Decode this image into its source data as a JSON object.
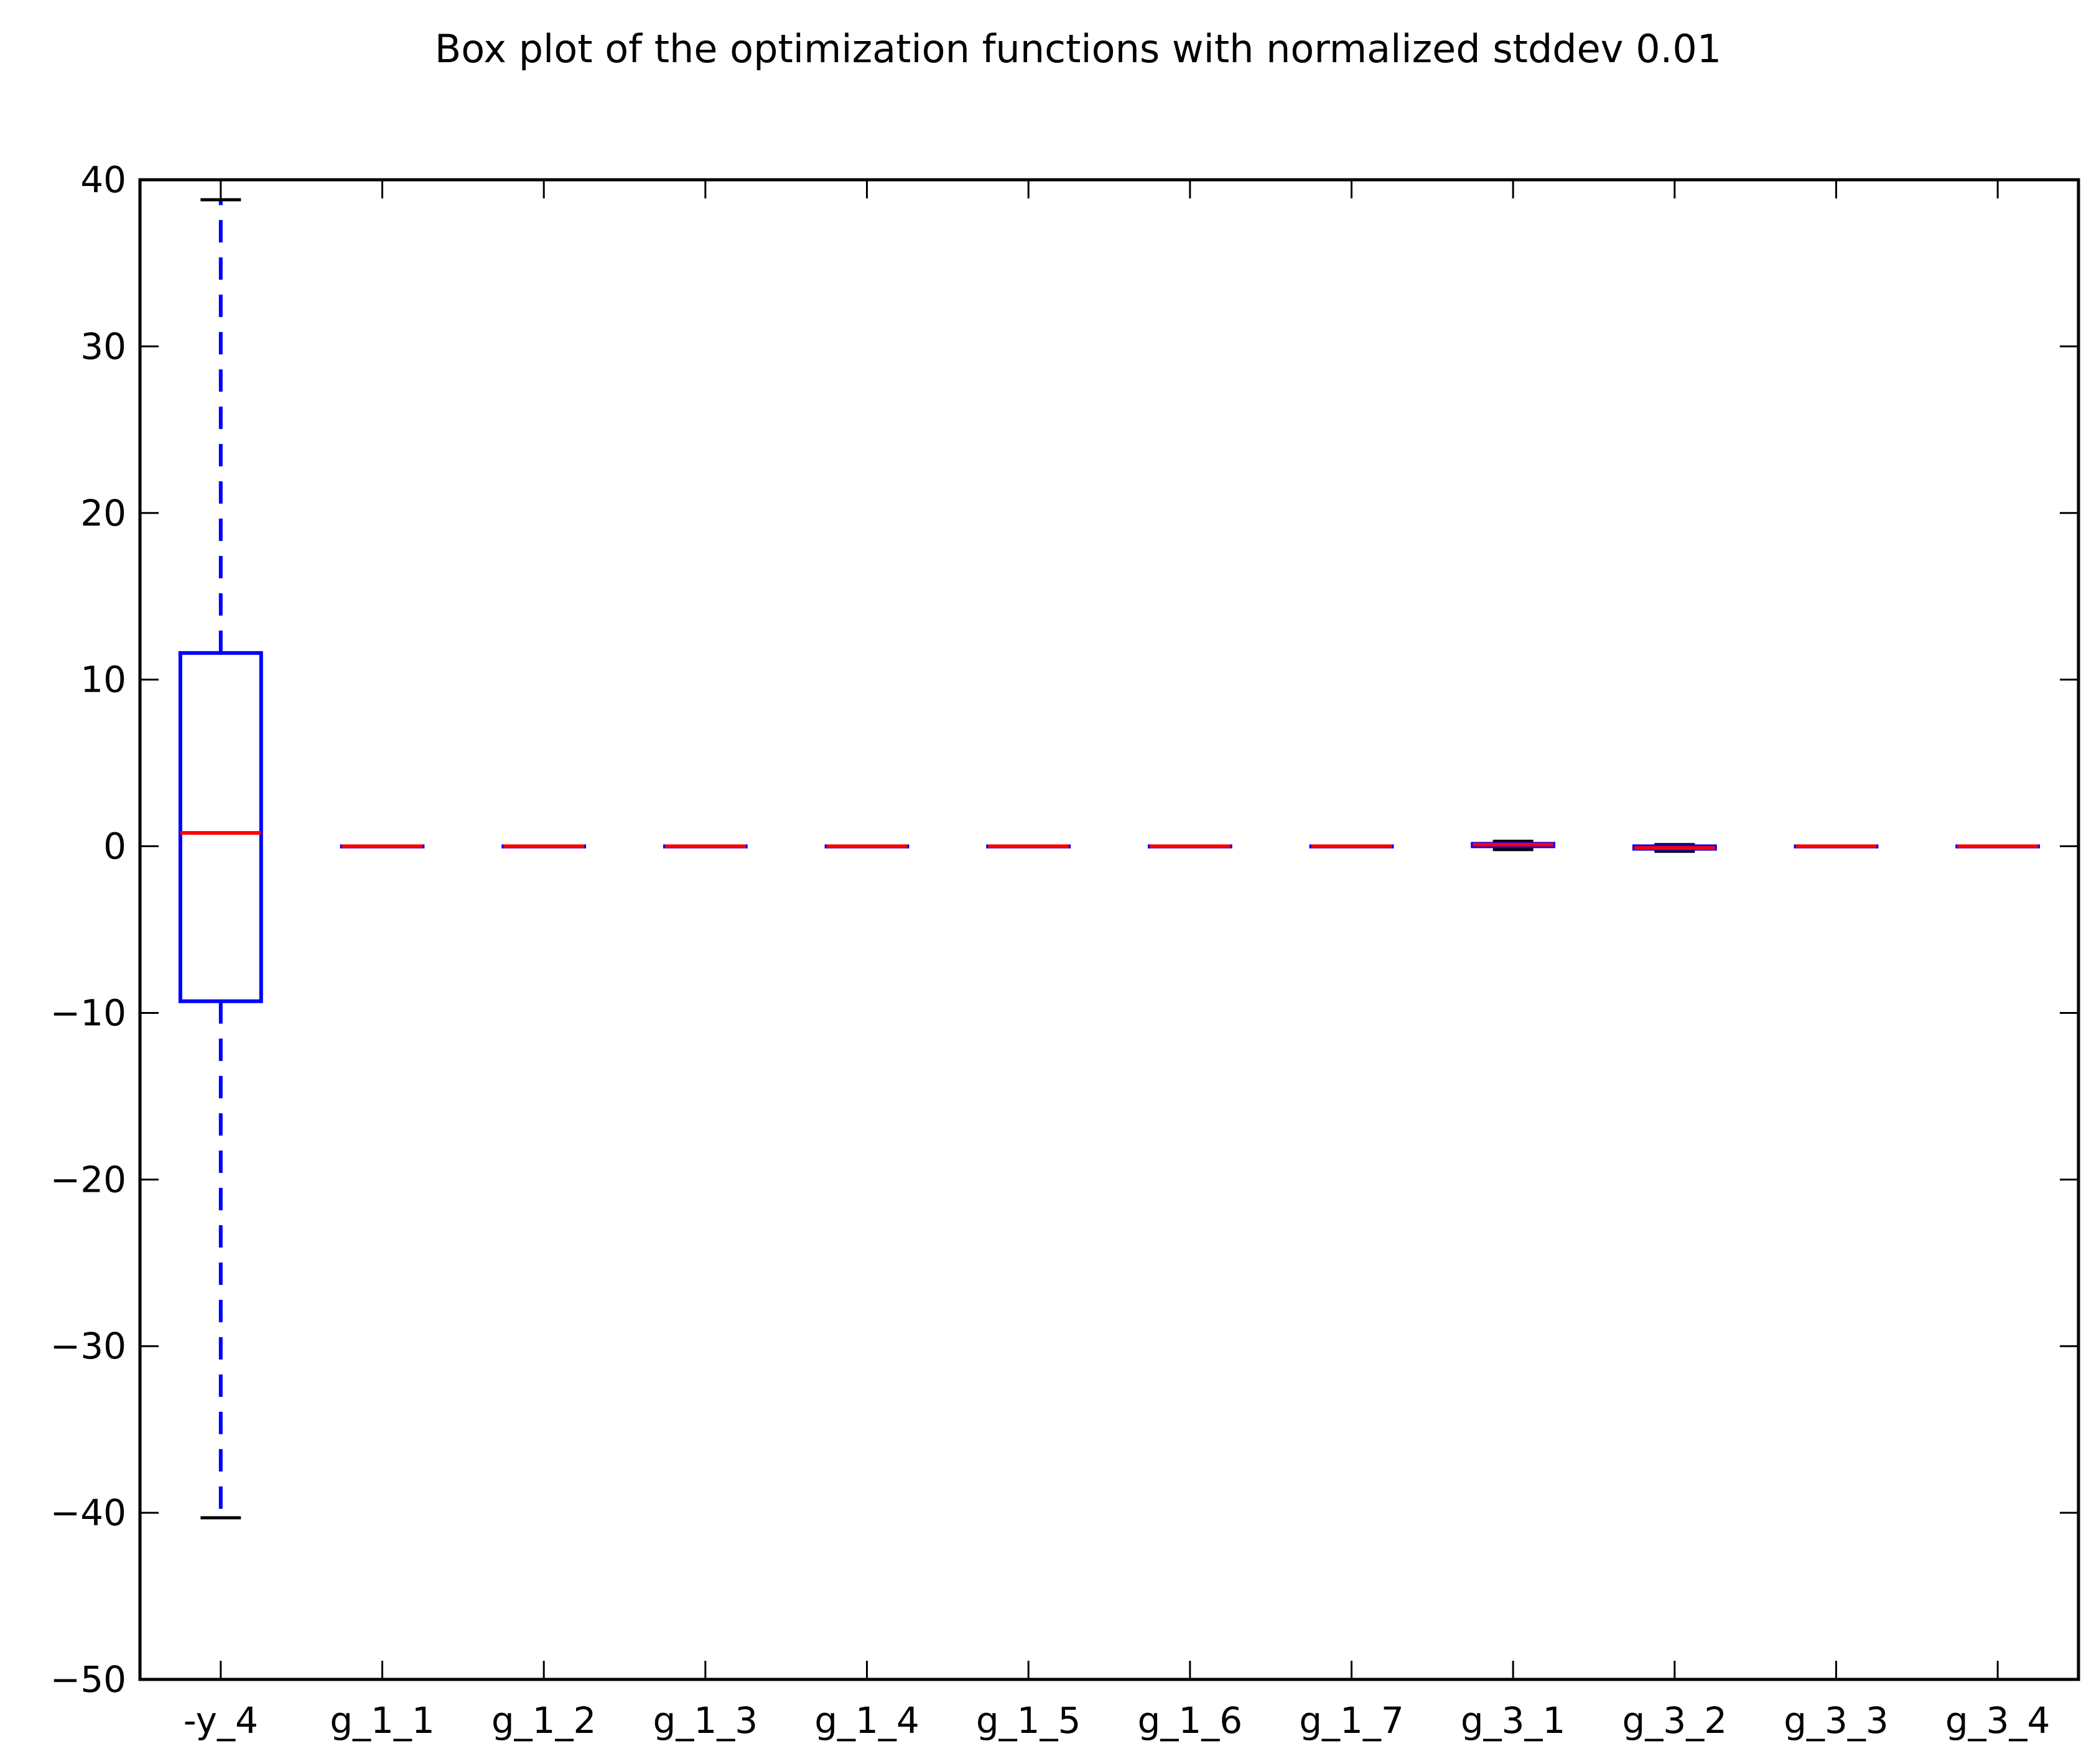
{
  "chart_data": {
    "type": "box",
    "title": "Box plot of the optimization functions with normalized stddev 0.01",
    "xlabel": "",
    "ylabel": "",
    "ylim": [
      -50,
      40
    ],
    "yticks": [
      -50,
      -40,
      -30,
      -20,
      -10,
      0,
      10,
      20,
      30,
      40
    ],
    "ytick_labels": [
      "−50",
      "−40",
      "−30",
      "−20",
      "−10",
      "0",
      "10",
      "20",
      "30",
      "40"
    ],
    "grid": false,
    "legend": "none",
    "colors": {
      "box": "#0000ff",
      "median": "#ff0000",
      "whisker": "#0000ff",
      "cap": "#000000",
      "axes": "#000000"
    },
    "categories": [
      "-y_4",
      "g_1_1",
      "g_1_2",
      "g_1_3",
      "g_1_4",
      "g_1_5",
      "g_1_6",
      "g_1_7",
      "g_3_1",
      "g_3_2",
      "g_3_3",
      "g_3_4"
    ],
    "boxes": [
      {
        "label": "-y_4",
        "whislo": -40.3,
        "q1": -9.3,
        "med": 0.8,
        "q3": 11.6,
        "whishi": 38.8
      },
      {
        "label": "g_1_1",
        "whislo": 0.0,
        "q1": 0.0,
        "med": 0.0,
        "q3": 0.0,
        "whishi": 0.0
      },
      {
        "label": "g_1_2",
        "whislo": 0.0,
        "q1": 0.0,
        "med": 0.0,
        "q3": 0.0,
        "whishi": 0.0
      },
      {
        "label": "g_1_3",
        "whislo": 0.0,
        "q1": 0.0,
        "med": 0.0,
        "q3": 0.0,
        "whishi": 0.0
      },
      {
        "label": "g_1_4",
        "whislo": 0.0,
        "q1": 0.0,
        "med": 0.0,
        "q3": 0.0,
        "whishi": 0.0
      },
      {
        "label": "g_1_5",
        "whislo": 0.0,
        "q1": 0.0,
        "med": 0.0,
        "q3": 0.0,
        "whishi": 0.0
      },
      {
        "label": "g_1_6",
        "whislo": 0.0,
        "q1": 0.0,
        "med": 0.0,
        "q3": 0.0,
        "whishi": 0.0
      },
      {
        "label": "g_1_7",
        "whislo": 0.0,
        "q1": 0.0,
        "med": 0.0,
        "q3": 0.0,
        "whishi": 0.0
      },
      {
        "label": "g_3_1",
        "whislo": -0.2,
        "q1": 0.0,
        "med": 0.1,
        "q3": 0.15,
        "whishi": 0.3
      },
      {
        "label": "g_3_2",
        "whislo": -0.3,
        "q1": -0.15,
        "med": -0.1,
        "q3": 0.0,
        "whishi": 0.1
      },
      {
        "label": "g_3_3",
        "whislo": 0.0,
        "q1": 0.0,
        "med": 0.0,
        "q3": 0.0,
        "whishi": 0.0
      },
      {
        "label": "g_3_4",
        "whislo": 0.0,
        "q1": 0.0,
        "med": 0.0,
        "q3": 0.0,
        "whishi": 0.0
      }
    ]
  }
}
